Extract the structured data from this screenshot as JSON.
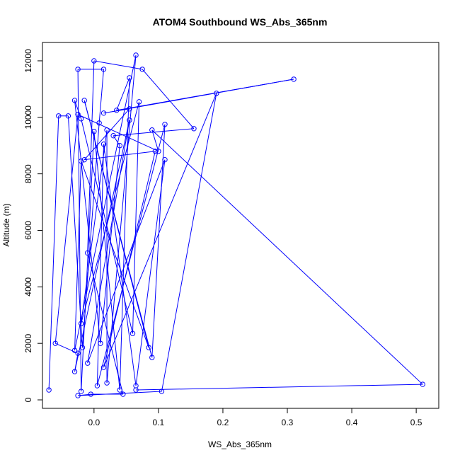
{
  "chart_data": {
    "type": "scatter",
    "title": "ATOM4 Southbound WS_Abs_365nm",
    "xlabel": "WS_Abs_365nm",
    "ylabel": "Altitude (m)",
    "xlim": [
      -0.08,
      0.535
    ],
    "ylim": [
      -300,
      12650
    ],
    "xticks": [
      0.0,
      0.1,
      0.2,
      0.3,
      0.4,
      0.5
    ],
    "xtick_labels": [
      "0.0",
      "0.1",
      "0.2",
      "0.3",
      "0.4",
      "0.5"
    ],
    "yticks": [
      0,
      2000,
      4000,
      6000,
      8000,
      10000,
      12000
    ],
    "ytick_labels": [
      "0",
      "2000",
      "4000",
      "6000",
      "8000",
      "10000",
      "12000"
    ],
    "grid": false,
    "connected": true,
    "color": "#0000ff",
    "series": [
      {
        "points": [
          {
            "x": -0.07,
            "y": 350
          },
          {
            "x": -0.055,
            "y": 10050
          },
          {
            "x": -0.04,
            "y": 10050
          },
          {
            "x": -0.018,
            "y": 1850
          },
          {
            "x": 0.008,
            "y": 9800
          },
          {
            "x": 0.015,
            "y": 11700
          },
          {
            "x": -0.025,
            "y": 11700
          },
          {
            "x": -0.02,
            "y": 300
          },
          {
            "x": 0.0,
            "y": 9500
          },
          {
            "x": 0.04,
            "y": 350
          },
          {
            "x": 0.055,
            "y": 11400
          },
          {
            "x": 0.035,
            "y": 10250
          },
          {
            "x": 0.31,
            "y": 11350
          },
          {
            "x": 0.015,
            "y": 10150
          },
          {
            "x": 0.055,
            "y": 10300
          },
          {
            "x": -0.015,
            "y": 8500
          },
          {
            "x": 0.095,
            "y": 8800
          },
          {
            "x": 0.015,
            "y": 1150
          },
          {
            "x": 0.19,
            "y": 10850
          },
          {
            "x": 0.105,
            "y": 300
          },
          {
            "x": -0.025,
            "y": 150
          },
          {
            "x": -0.005,
            "y": 200
          },
          {
            "x": 0.045,
            "y": 200
          },
          {
            "x": -0.01,
            "y": 5200
          },
          {
            "x": 0.0,
            "y": 12000
          },
          {
            "x": 0.075,
            "y": 11700
          },
          {
            "x": 0.155,
            "y": 9600
          },
          {
            "x": 0.03,
            "y": 9350
          },
          {
            "x": 0.04,
            "y": 9000
          },
          {
            "x": 0.01,
            "y": 2000
          },
          {
            "x": -0.03,
            "y": 10600
          },
          {
            "x": -0.02,
            "y": 9950
          },
          {
            "x": 0.06,
            "y": 2350
          },
          {
            "x": 0.07,
            "y": 10550
          },
          {
            "x": -0.02,
            "y": 2700
          },
          {
            "x": 0.02,
            "y": 9550
          },
          {
            "x": 0.02,
            "y": 600
          },
          {
            "x": 0.065,
            "y": 12200
          },
          {
            "x": -0.03,
            "y": 1750
          },
          {
            "x": -0.02,
            "y": 8450
          },
          {
            "x": 0.085,
            "y": 1850
          },
          {
            "x": -0.015,
            "y": 10600
          },
          {
            "x": 0.09,
            "y": 1500
          },
          {
            "x": 0.11,
            "y": 9750
          },
          {
            "x": 0.005,
            "y": 500
          },
          {
            "x": 0.015,
            "y": 9050
          },
          {
            "x": 0.065,
            "y": 500
          },
          {
            "x": 0.11,
            "y": 8500
          },
          {
            "x": -0.01,
            "y": 1300
          },
          {
            "x": 0.055,
            "y": 9900
          },
          {
            "x": -0.03,
            "y": 1000
          },
          {
            "x": -0.025,
            "y": 1650
          },
          {
            "x": -0.06,
            "y": 2000
          },
          {
            "x": -0.025,
            "y": 10100
          },
          {
            "x": 0.1,
            "y": 8800
          },
          {
            "x": 0.09,
            "y": 9550
          },
          {
            "x": 0.51,
            "y": 550
          },
          {
            "x": 0.065,
            "y": 350
          }
        ]
      }
    ]
  }
}
